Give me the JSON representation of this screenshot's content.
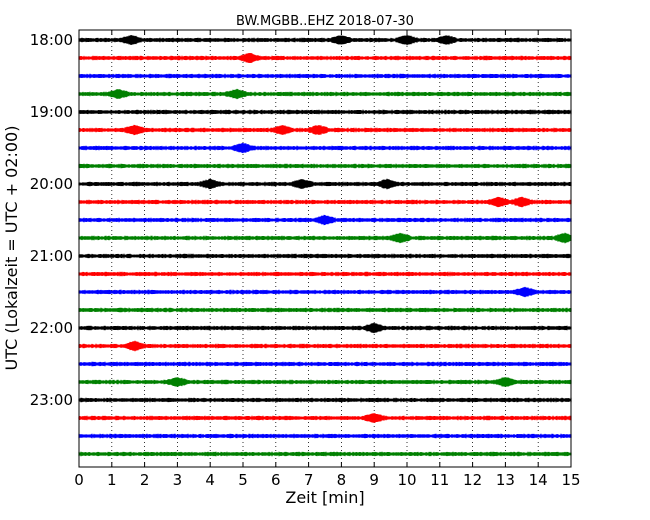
{
  "chart_data": {
    "type": "line",
    "title": "BW.MGBB..EHZ 2018-07-30",
    "xlabel": "Zeit  [min]",
    "ylabel": "UTC (Lokalzeit = UTC + 02:00)",
    "xlim": [
      0,
      15
    ],
    "xticks": [
      0,
      1,
      2,
      3,
      4,
      5,
      6,
      7,
      8,
      9,
      10,
      11,
      12,
      13,
      14,
      15
    ],
    "yticks": [
      "18:00",
      "19:00",
      "20:00",
      "21:00",
      "22:00",
      "23:00"
    ],
    "grid": "vertical dotted",
    "trace_colors": [
      "#000000",
      "#ff0000",
      "#0000ff",
      "#008000"
    ],
    "trace_start_times": [
      "18:00",
      "18:15",
      "18:30",
      "18:45",
      "19:00",
      "19:15",
      "19:30",
      "19:45",
      "20:00",
      "20:15",
      "20:30",
      "20:45",
      "21:00",
      "21:15",
      "21:30",
      "21:45",
      "22:00",
      "22:15",
      "22:30",
      "22:45",
      "23:00",
      "23:15",
      "23:30",
      "23:45"
    ],
    "trace_duration_min": 15,
    "events": [
      [
        1.6,
        8,
        10,
        11.2
      ],
      [
        5.2
      ],
      [],
      [
        1.2,
        4.8
      ],
      [],
      [
        1.7,
        6.2,
        7.3
      ],
      [
        5.0
      ],
      [],
      [
        4.0,
        6.8,
        9.4
      ],
      [
        12.8,
        13.5
      ],
      [
        7.5
      ],
      [
        9.8,
        14.8
      ],
      [],
      [],
      [
        13.6
      ],
      [],
      [
        9.0
      ],
      [
        1.7
      ],
      [],
      [
        3.0,
        13.0
      ],
      [],
      [
        9.0
      ],
      [],
      []
    ]
  }
}
